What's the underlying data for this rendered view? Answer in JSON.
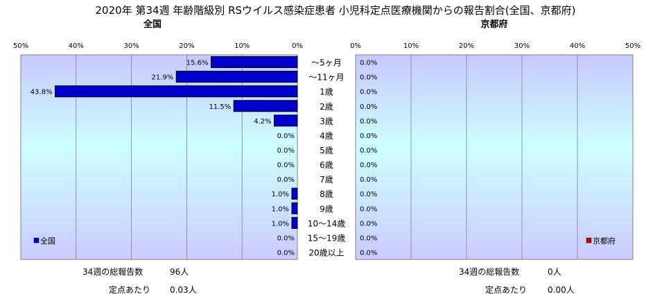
{
  "title": "2020年 第34週 年齢階級別 RSウイルス感染症患者 小児科定点医療機関からの報告割合(全国、京都府)",
  "categories": [
    "～5ヶ月",
    "～11ヶ月",
    "1歳",
    "2歳",
    "3歳",
    "4歳",
    "5歳",
    "6歳",
    "7歳",
    "8歳",
    "9歳",
    "10～14歳",
    "15～19歳",
    "20歳以上"
  ],
  "chart_data": [
    {
      "type": "bar",
      "orientation": "horizontal",
      "direction": "right-to-left",
      "title": "全国",
      "categories": [
        "～5ヶ月",
        "～11ヶ月",
        "1歳",
        "2歳",
        "3歳",
        "4歳",
        "5歳",
        "6歳",
        "7歳",
        "8歳",
        "9歳",
        "10～14歳",
        "15～19歳",
        "20歳以上"
      ],
      "series": [
        {
          "name": "全国",
          "color": "#0000cc",
          "values": [
            15.6,
            21.9,
            43.8,
            11.5,
            4.2,
            0.0,
            0.0,
            0.0,
            0.0,
            1.0,
            1.0,
            1.0,
            0.0,
            0.0
          ],
          "labels": [
            "15.6%",
            "21.9%",
            "43.8%",
            "11.5%",
            "4.2%",
            "0.0%",
            "0.0%",
            "0.0%",
            "0.0%",
            "1.0%",
            "1.0%",
            "1.0%",
            "0.0%",
            "0.0%"
          ]
        }
      ],
      "xlim": [
        0,
        50
      ],
      "ticks": [
        "50%",
        "40%",
        "30%",
        "20%",
        "10%",
        "0%"
      ],
      "grid": true,
      "legend_position": "bottom-left"
    },
    {
      "type": "bar",
      "orientation": "horizontal",
      "direction": "left-to-right",
      "title": "京都府",
      "categories": [
        "～5ヶ月",
        "～11ヶ月",
        "1歳",
        "2歳",
        "3歳",
        "4歳",
        "5歳",
        "6歳",
        "7歳",
        "8歳",
        "9歳",
        "10～14歳",
        "15～19歳",
        "20歳以上"
      ],
      "series": [
        {
          "name": "京都府",
          "color": "#cc0000",
          "values": [
            0.0,
            0.0,
            0.0,
            0.0,
            0.0,
            0.0,
            0.0,
            0.0,
            0.0,
            0.0,
            0.0,
            0.0,
            0.0,
            0.0
          ],
          "labels": [
            "0.0%",
            "0.0%",
            "0.0%",
            "0.0%",
            "0.0%",
            "0.0%",
            "0.0%",
            "0.0%",
            "0.0%",
            "0.0%",
            "0.0%",
            "0.0%",
            "0.0%",
            "0.0%"
          ]
        }
      ],
      "xlim": [
        0,
        50
      ],
      "ticks": [
        "0%",
        "10%",
        "20%",
        "30%",
        "40%",
        "50%"
      ],
      "grid": true,
      "legend_position": "bottom-right"
    }
  ],
  "footer": {
    "national": {
      "total_label": "34週の総報告数",
      "total_value": "96人",
      "per_label": "定点あたり",
      "per_value": "0.03人"
    },
    "kyoto": {
      "total_label": "34週の総報告数",
      "total_value": "0人",
      "per_label": "定点あたり",
      "per_value": "0.00人"
    }
  }
}
